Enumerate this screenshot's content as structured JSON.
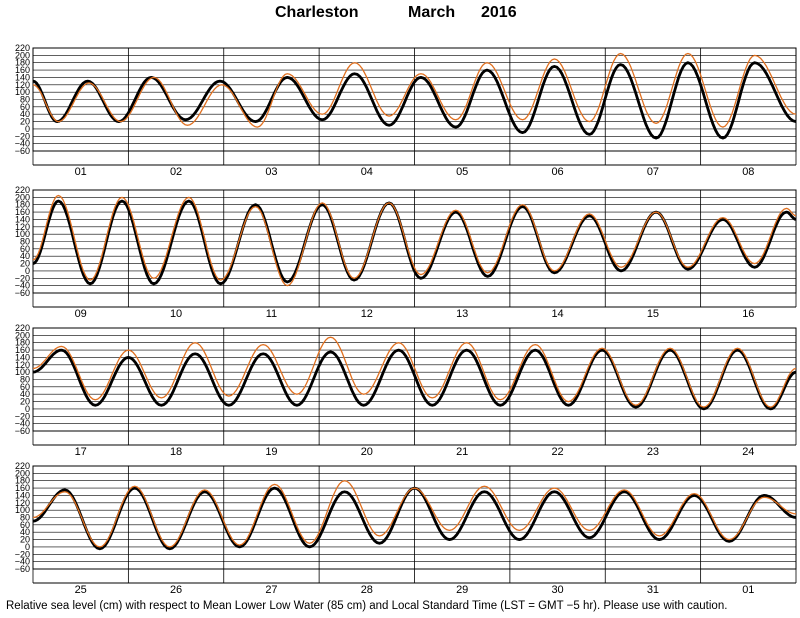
{
  "header": {
    "station": "Charleston",
    "month": "March",
    "year": "2016"
  },
  "footer": "Relative sea level (cm) with respect to Mean Lower Low Water (85 cm) and Local Standard Time (LST = GMT −5 hr). Please use with caution.",
  "colors": {
    "predicted": "#000000",
    "observed": "#e07020",
    "grid": "#000000"
  },
  "chart_data": {
    "type": "line",
    "title": "Charleston March 2016",
    "ylim": [
      -60,
      220
    ],
    "yticks": [
      "220",
      "200",
      "180",
      "160",
      "140",
      "120",
      "100",
      "80",
      "60",
      "40",
      "20",
      "0",
      "−20",
      "−40",
      "−60"
    ],
    "grid": true,
    "panels": [
      {
        "days": [
          "01",
          "02",
          "03",
          "04",
          "05",
          "06",
          "07",
          "08"
        ],
        "series": [
          {
            "role": "predicted",
            "extrema": [
              [
                0,
                130
              ],
              [
                0.38,
                20
              ],
              [
                0.86,
                130
              ],
              [
                1.35,
                20
              ],
              [
                1.86,
                140
              ],
              [
                2.4,
                25
              ],
              [
                2.94,
                130
              ],
              [
                3.5,
                20
              ],
              [
                4.0,
                140
              ],
              [
                4.55,
                25
              ],
              [
                5.06,
                150
              ],
              [
                5.6,
                10
              ],
              [
                6.1,
                140
              ],
              [
                6.65,
                5
              ],
              [
                7.14,
                160
              ],
              [
                7.7,
                -10
              ],
              [
                8.2,
                170
              ],
              [
                8.75,
                -15
              ],
              [
                9.24,
                175
              ],
              [
                9.8,
                -25
              ],
              [
                10.3,
                180
              ],
              [
                10.85,
                -25
              ],
              [
                11.35,
                180
              ],
              [
                12,
                20
              ]
            ]
          },
          {
            "role": "observed",
            "extrema": [
              [
                0,
                120
              ],
              [
                0.4,
                20
              ],
              [
                0.88,
                125
              ],
              [
                1.38,
                20
              ],
              [
                1.9,
                140
              ],
              [
                2.43,
                10
              ],
              [
                2.97,
                120
              ],
              [
                3.53,
                5
              ],
              [
                4.0,
                150
              ],
              [
                4.55,
                40
              ],
              [
                5.06,
                180
              ],
              [
                5.6,
                35
              ],
              [
                6.1,
                150
              ],
              [
                6.65,
                25
              ],
              [
                7.14,
                180
              ],
              [
                7.7,
                25
              ],
              [
                8.2,
                190
              ],
              [
                8.75,
                20
              ],
              [
                9.24,
                205
              ],
              [
                9.8,
                15
              ],
              [
                10.3,
                205
              ],
              [
                10.85,
                5
              ],
              [
                11.35,
                200
              ],
              [
                12,
                40
              ]
            ]
          }
        ]
      },
      {
        "days": [
          "09",
          "10",
          "11",
          "12",
          "13",
          "14",
          "15",
          "16"
        ],
        "series": [
          {
            "role": "predicted",
            "extrema": [
              [
                0,
                20
              ],
              [
                0.4,
                190
              ],
              [
                0.9,
                -35
              ],
              [
                1.4,
                190
              ],
              [
                1.9,
                -35
              ],
              [
                2.45,
                190
              ],
              [
                2.95,
                -35
              ],
              [
                3.5,
                180
              ],
              [
                4.0,
                -30
              ],
              [
                4.55,
                180
              ],
              [
                5.05,
                -25
              ],
              [
                5.6,
                185
              ],
              [
                6.1,
                -20
              ],
              [
                6.65,
                160
              ],
              [
                7.15,
                -15
              ],
              [
                7.7,
                175
              ],
              [
                8.2,
                -5
              ],
              [
                8.75,
                150
              ],
              [
                9.25,
                0
              ],
              [
                9.8,
                160
              ],
              [
                10.3,
                5
              ],
              [
                10.85,
                140
              ],
              [
                11.35,
                10
              ],
              [
                11.85,
                160
              ],
              [
                12,
                140
              ]
            ]
          },
          {
            "role": "observed",
            "extrema": [
              [
                0,
                30
              ],
              [
                0.4,
                205
              ],
              [
                0.9,
                -25
              ],
              [
                1.4,
                200
              ],
              [
                1.9,
                -20
              ],
              [
                2.45,
                200
              ],
              [
                2.95,
                -25
              ],
              [
                3.5,
                175
              ],
              [
                4.0,
                -40
              ],
              [
                4.55,
                185
              ],
              [
                5.05,
                -20
              ],
              [
                5.6,
                185
              ],
              [
                6.1,
                -10
              ],
              [
                6.65,
                165
              ],
              [
                7.15,
                -5
              ],
              [
                7.7,
                180
              ],
              [
                8.2,
                0
              ],
              [
                8.75,
                155
              ],
              [
                9.25,
                10
              ],
              [
                9.8,
                160
              ],
              [
                10.3,
                10
              ],
              [
                10.85,
                145
              ],
              [
                11.35,
                20
              ],
              [
                11.85,
                170
              ],
              [
                12,
                150
              ]
            ]
          }
        ]
      },
      {
        "days": [
          "17",
          "18",
          "19",
          "20",
          "21",
          "22",
          "23",
          "24"
        ],
        "series": [
          {
            "role": "predicted",
            "extrema": [
              [
                0,
                100
              ],
              [
                0.45,
                160
              ],
              [
                0.98,
                10
              ],
              [
                1.5,
                140
              ],
              [
                2.02,
                10
              ],
              [
                2.55,
                150
              ],
              [
                3.08,
                10
              ],
              [
                3.62,
                150
              ],
              [
                4.15,
                10
              ],
              [
                4.68,
                155
              ],
              [
                5.2,
                10
              ],
              [
                5.75,
                160
              ],
              [
                6.28,
                10
              ],
              [
                6.82,
                160
              ],
              [
                7.35,
                10
              ],
              [
                7.9,
                160
              ],
              [
                8.42,
                10
              ],
              [
                8.95,
                160
              ],
              [
                9.48,
                5
              ],
              [
                10.02,
                160
              ],
              [
                10.55,
                0
              ],
              [
                11.08,
                160
              ],
              [
                11.6,
                0
              ],
              [
                12,
                100
              ]
            ]
          },
          {
            "role": "observed",
            "extrema": [
              [
                0,
                110
              ],
              [
                0.45,
                170
              ],
              [
                0.98,
                25
              ],
              [
                1.5,
                160
              ],
              [
                2.02,
                30
              ],
              [
                2.55,
                180
              ],
              [
                3.08,
                35
              ],
              [
                3.62,
                175
              ],
              [
                4.15,
                40
              ],
              [
                4.68,
                195
              ],
              [
                5.2,
                40
              ],
              [
                5.75,
                180
              ],
              [
                6.28,
                30
              ],
              [
                6.82,
                180
              ],
              [
                7.35,
                25
              ],
              [
                7.9,
                175
              ],
              [
                8.42,
                20
              ],
              [
                8.95,
                165
              ],
              [
                9.48,
                10
              ],
              [
                10.02,
                165
              ],
              [
                10.55,
                5
              ],
              [
                11.08,
                165
              ],
              [
                11.6,
                5
              ],
              [
                12,
                110
              ]
            ]
          }
        ]
      },
      {
        "days": [
          "25",
          "26",
          "27",
          "28",
          "29",
          "30",
          "31",
          "01"
        ],
        "series": [
          {
            "role": "predicted",
            "extrema": [
              [
                0,
                70
              ],
              [
                0.5,
                155
              ],
              [
                1.05,
                -5
              ],
              [
                1.6,
                160
              ],
              [
                2.15,
                -5
              ],
              [
                2.7,
                150
              ],
              [
                3.25,
                0
              ],
              [
                3.8,
                160
              ],
              [
                4.35,
                0
              ],
              [
                4.9,
                150
              ],
              [
                5.45,
                10
              ],
              [
                6.0,
                160
              ],
              [
                6.55,
                20
              ],
              [
                7.1,
                150
              ],
              [
                7.65,
                20
              ],
              [
                8.2,
                150
              ],
              [
                8.75,
                25
              ],
              [
                9.3,
                150
              ],
              [
                9.85,
                20
              ],
              [
                10.4,
                140
              ],
              [
                10.95,
                15
              ],
              [
                11.5,
                140
              ],
              [
                12,
                80
              ]
            ]
          },
          {
            "role": "observed",
            "extrema": [
              [
                0,
                80
              ],
              [
                0.5,
                150
              ],
              [
                1.05,
                0
              ],
              [
                1.6,
                165
              ],
              [
                2.15,
                0
              ],
              [
                2.7,
                155
              ],
              [
                3.25,
                5
              ],
              [
                3.8,
                170
              ],
              [
                4.35,
                10
              ],
              [
                4.9,
                180
              ],
              [
                5.45,
                30
              ],
              [
                6.0,
                160
              ],
              [
                6.55,
                45
              ],
              [
                7.1,
                165
              ],
              [
                7.65,
                45
              ],
              [
                8.2,
                160
              ],
              [
                8.75,
                45
              ],
              [
                9.3,
                155
              ],
              [
                9.85,
                30
              ],
              [
                10.4,
                145
              ],
              [
                10.95,
                20
              ],
              [
                11.5,
                135
              ],
              [
                12,
                90
              ]
            ]
          }
        ]
      }
    ]
  }
}
